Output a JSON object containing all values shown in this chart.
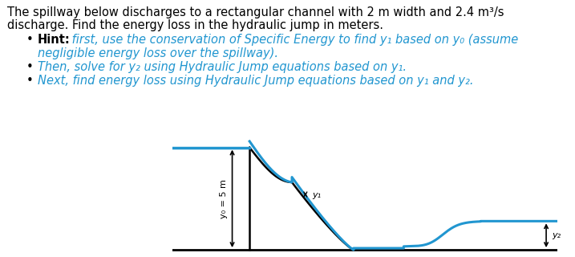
{
  "text_line1": "The spillway below discharges to a rectangular channel with 2 m width and 2.4 m³/s",
  "text_line2": "discharge. Find the energy loss in the hydraulic jump in meters.",
  "bullet1_hint": "Hint:",
  "bullet1_rest": " first, use the conservation of Specific Energy to find y₁ based on y₀ (assume",
  "bullet1_cont": "negligible energy loss over the spillway).",
  "bullet2": "Then, solve for y₂ using Hydraulic Jump equations based on y₁.",
  "bullet3": "Next, find energy loss using Hydraulic Jump equations based on y₁ and y₂.",
  "label_y0": "y₀ = 5 m",
  "label_y1": "y₁",
  "label_y2": "y₂",
  "bg_color": "#ffffff",
  "text_color": "#000000",
  "blue_color": "#2196d0",
  "black_color": "#000000",
  "red_color": "#c0392b",
  "fontsize_body": 10.5,
  "fontsize_label": 8.0
}
